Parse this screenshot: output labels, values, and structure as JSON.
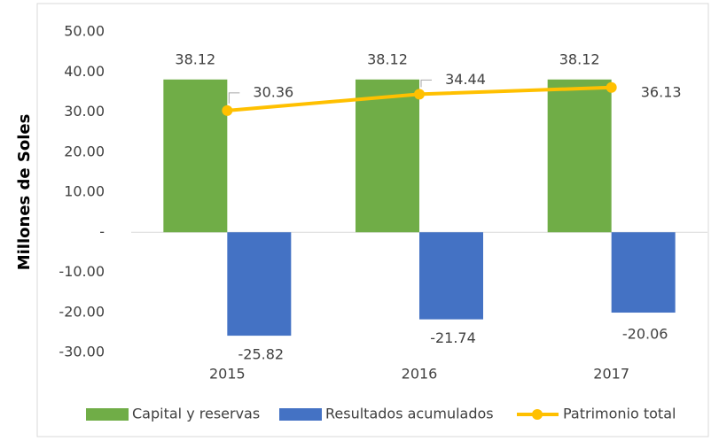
{
  "chart_data": {
    "type": "bar",
    "y_label": "Millones de Soles",
    "categories": [
      "2015",
      "2016",
      "2017"
    ],
    "series": [
      {
        "name": "Capital y reservas",
        "color": "#70ad47",
        "type": "bar",
        "values": [
          38.12,
          38.12,
          38.12
        ]
      },
      {
        "name": "Resultados acumulados",
        "color": "#4472c4",
        "type": "bar",
        "values": [
          -25.82,
          -21.74,
          -20.06
        ]
      },
      {
        "name": "Patrimonio total",
        "color": "#ffc000",
        "type": "line",
        "values": [
          30.36,
          34.44,
          36.13
        ]
      }
    ],
    "ylim": [
      -30,
      50
    ],
    "yticks": [
      {
        "value": -30,
        "label": "-30.00"
      },
      {
        "value": -20,
        "label": "-20.00"
      },
      {
        "value": -10,
        "label": "-10.00"
      },
      {
        "value": 0,
        "label": "-"
      },
      {
        "value": 10,
        "label": "10.00"
      },
      {
        "value": 20,
        "label": "20.00"
      },
      {
        "value": 30,
        "label": "30.00"
      },
      {
        "value": 40,
        "label": "40.00"
      },
      {
        "value": 50,
        "label": "50.00"
      }
    ],
    "grid": false,
    "legend": "bottom"
  }
}
